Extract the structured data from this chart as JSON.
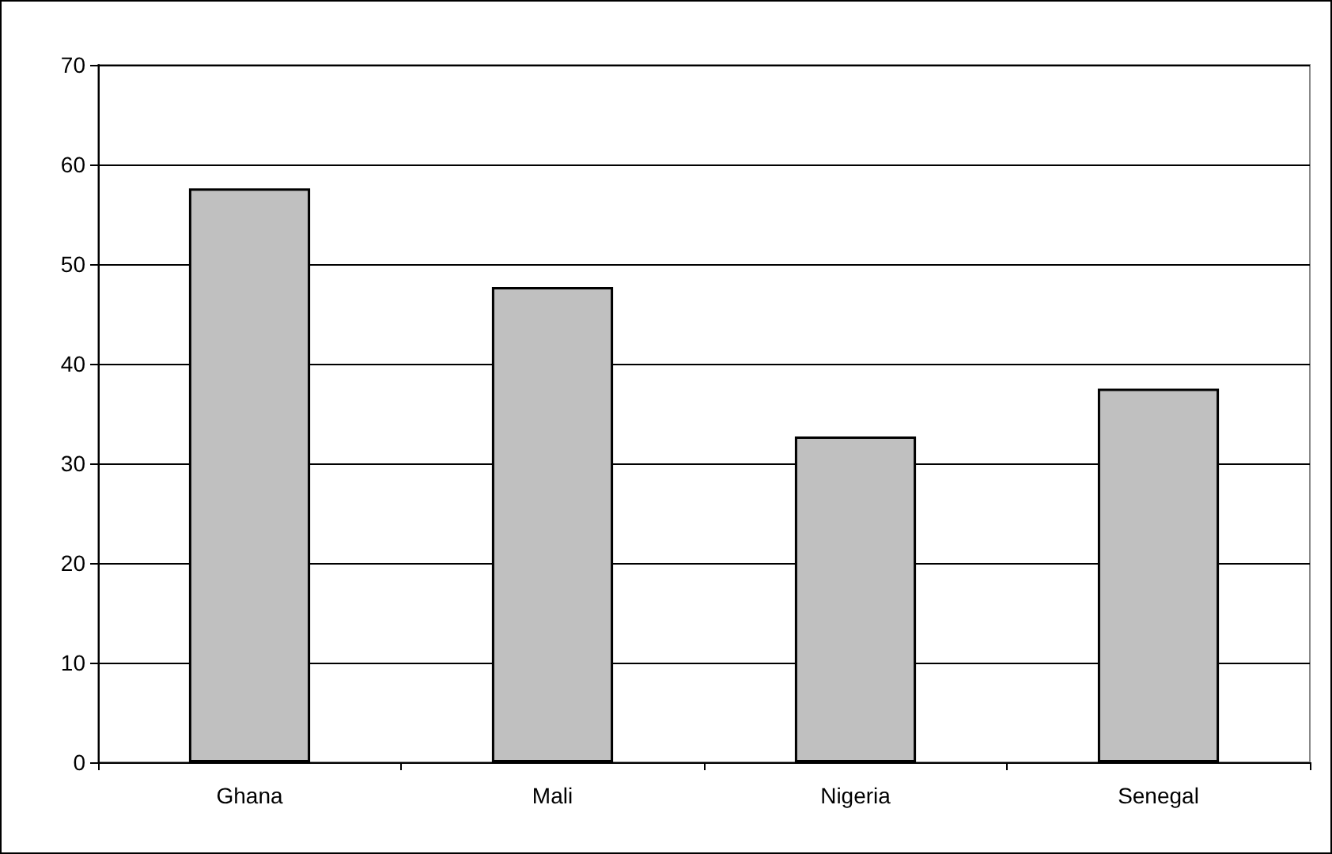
{
  "chart_data": {
    "type": "bar",
    "categories": [
      "Ghana",
      "Mali",
      "Nigeria",
      "Senegal"
    ],
    "values": [
      57.6,
      47.7,
      32.7,
      37.5
    ],
    "color": "#c0c0c0",
    "ylim": [
      0,
      70
    ],
    "yticks": [
      0,
      10,
      20,
      30,
      40,
      50,
      60,
      70
    ],
    "grid": "y"
  }
}
